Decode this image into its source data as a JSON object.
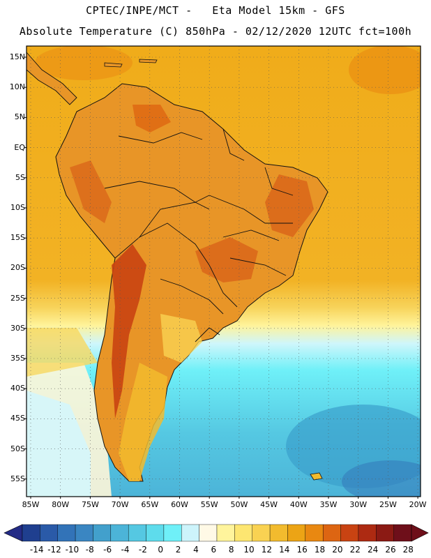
{
  "header": {
    "line1": "CPTEC/INPE/MCT -   Eta Model 15km - GFS",
    "line2": "Absolute Temperature (C) 850hPa - 02/12/2020 12UTC fct=100h"
  },
  "axes": {
    "lat_labels": [
      "15N",
      "10N",
      "5N",
      "EQ",
      "5S",
      "10S",
      "15S",
      "20S",
      "25S",
      "30S",
      "35S",
      "40S",
      "45S",
      "50S",
      "55S"
    ],
    "lon_labels": [
      "85W",
      "80W",
      "75W",
      "70W",
      "65W",
      "60W",
      "55W",
      "50W",
      "45W",
      "40W",
      "35W",
      "30W",
      "25W",
      "20W"
    ]
  },
  "colorbar": {
    "labels": [
      "-14",
      "-12",
      "-10",
      "-8",
      "-6",
      "-4",
      "-2",
      "0",
      "2",
      "4",
      "6",
      "8",
      "10",
      "12",
      "14",
      "16",
      "18",
      "20",
      "22",
      "24",
      "26",
      "28"
    ],
    "colors": [
      "#1f3f8f",
      "#2a5aa8",
      "#3273b8",
      "#3a86c2",
      "#42a0cc",
      "#4cb4d8",
      "#55c8e2",
      "#5edcec",
      "#6ff0f8",
      "#cdf4fb",
      "#fff9e6",
      "#fff49c",
      "#fde671",
      "#f9d252",
      "#f2bb2e",
      "#eca415",
      "#e98811",
      "#dd6512",
      "#c94312",
      "#ad2a12",
      "#8b1a14",
      "#6e0f1a"
    ]
  },
  "map": {
    "legend_low_color": "#232b86",
    "legend_high_color": "#6e0f1a",
    "ocean_warm": "#f0ac1a",
    "ocean_cold": "#5ad9ec",
    "land_warm": "#e89527",
    "land_hot": "#d9661a",
    "coastline_color": "#111111",
    "frame_color": "#000000"
  }
}
